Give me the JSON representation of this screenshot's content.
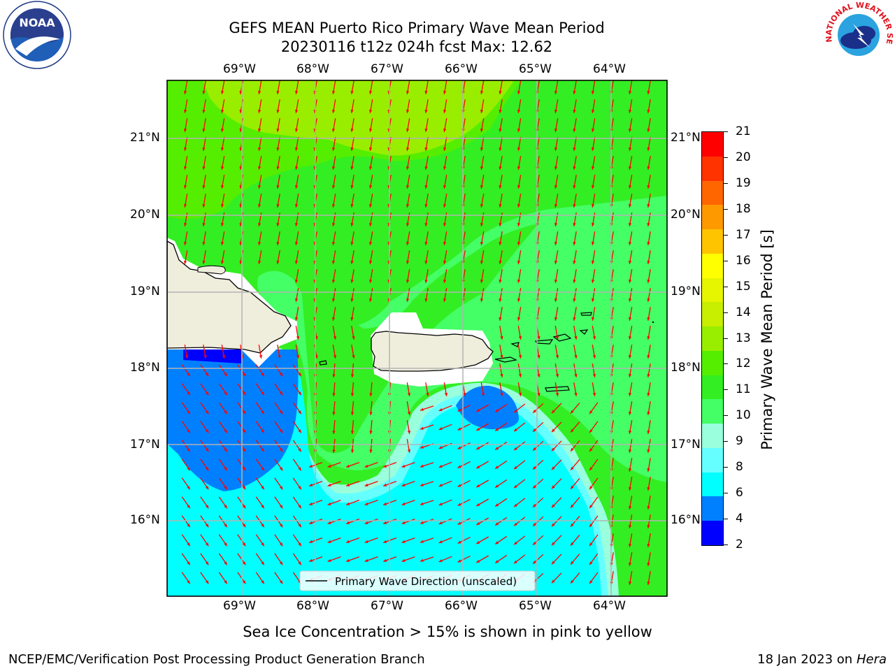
{
  "title": {
    "line1": "GEFS MEAN Puerto Rico Primary Wave Mean Period",
    "line2": "20230116 t12z 024h fcst   Max: 12.62"
  },
  "map": {
    "lon_labels": [
      "69°W",
      "68°W",
      "67°W",
      "66°W",
      "65°W",
      "64°W"
    ],
    "lat_labels": [
      "21°N",
      "20°N",
      "19°N",
      "18°N",
      "17°N",
      "16°N"
    ],
    "legend_label": "Primary Wave Direction (unscaled)",
    "arrow_color": "#ff0000",
    "land_color": "#efeddc"
  },
  "colorbar": {
    "label": "Primary Wave Mean Period [s]",
    "ticks": [
      "21",
      "20",
      "19",
      "18",
      "17",
      "16",
      "15",
      "14",
      "13",
      "12",
      "11",
      "10",
      "9",
      "8",
      "6",
      "4",
      "2"
    ],
    "colors": [
      "#ff0000",
      "#ff3300",
      "#ff6600",
      "#ff9900",
      "#ffc400",
      "#ffff00",
      "#e6f500",
      "#c8ee00",
      "#99ee00",
      "#55ee00",
      "#33ee22",
      "#44ff66",
      "#99ffdd",
      "#66ffff",
      "#00ffff",
      "#0080ff",
      "#0000ff"
    ]
  },
  "notes": {
    "ice": "Sea Ice Concentration > 15% is shown in pink to yellow"
  },
  "footer": {
    "left": "NCEP/EMC/Verification Post Processing Product Generation Branch",
    "right_prefix": "18 Jan 2023 on ",
    "right_host": "Hera"
  },
  "logos": {
    "noaa_text": "NOAA",
    "nws_text": "NATIONAL WEATHER SERVICE"
  }
}
